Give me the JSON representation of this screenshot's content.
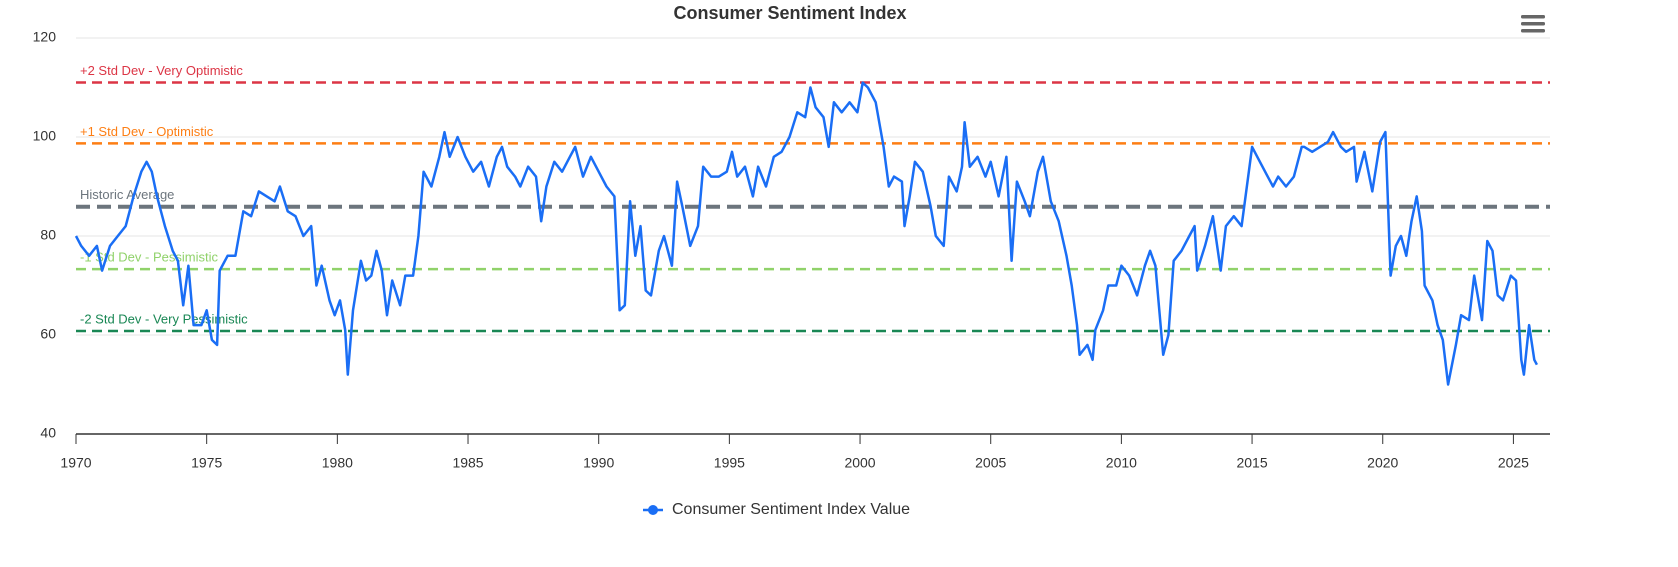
{
  "chart_data": {
    "type": "line",
    "title": "Consumer Sentiment Index",
    "x": [
      1970.0,
      1970.2,
      1970.5,
      1970.8,
      1971.0,
      1971.3,
      1971.6,
      1971.9,
      1972.2,
      1972.5,
      1972.7,
      1972.9,
      1973.1,
      1973.4,
      1973.7,
      1973.9,
      1974.1,
      1974.3,
      1974.5,
      1974.8,
      1975.0,
      1975.2,
      1975.4,
      1975.5,
      1975.8,
      1976.1,
      1976.4,
      1976.7,
      1977.0,
      1977.3,
      1977.6,
      1977.8,
      1978.1,
      1978.4,
      1978.7,
      1979.0,
      1979.2,
      1979.4,
      1979.7,
      1979.9,
      1980.1,
      1980.3,
      1980.4,
      1980.6,
      1980.9,
      1981.1,
      1981.3,
      1981.5,
      1981.7,
      1981.9,
      1982.1,
      1982.4,
      1982.6,
      1982.9,
      1983.1,
      1983.3,
      1983.6,
      1983.9,
      1984.1,
      1984.3,
      1984.6,
      1984.9,
      1985.2,
      1985.5,
      1985.8,
      1986.1,
      1986.3,
      1986.5,
      1986.8,
      1987.0,
      1987.3,
      1987.6,
      1987.8,
      1988.0,
      1988.3,
      1988.6,
      1988.9,
      1989.1,
      1989.4,
      1989.7,
      1990.0,
      1990.3,
      1990.6,
      1990.8,
      1991.0,
      1991.2,
      1991.4,
      1991.6,
      1991.8,
      1992.0,
      1992.3,
      1992.5,
      1992.8,
      1993.0,
      1993.2,
      1993.5,
      1993.8,
      1994.0,
      1994.3,
      1994.6,
      1994.9,
      1995.1,
      1995.3,
      1995.6,
      1995.9,
      1996.1,
      1996.4,
      1996.7,
      1997.0,
      1997.3,
      1997.6,
      1997.9,
      1998.1,
      1998.3,
      1998.6,
      1998.8,
      1999.0,
      1999.3,
      1999.6,
      1999.9,
      2000.1,
      2000.3,
      2000.6,
      2000.9,
      2001.1,
      2001.3,
      2001.6,
      2001.7,
      2001.9,
      2002.1,
      2002.4,
      2002.7,
      2002.9,
      2003.2,
      2003.4,
      2003.7,
      2003.9,
      2004.0,
      2004.2,
      2004.5,
      2004.8,
      2005.0,
      2005.3,
      2005.6,
      2005.8,
      2006.0,
      2006.3,
      2006.5,
      2006.8,
      2007.0,
      2007.3,
      2007.6,
      2007.9,
      2008.1,
      2008.3,
      2008.4,
      2008.7,
      2008.9,
      2009.0,
      2009.3,
      2009.5,
      2009.8,
      2010.0,
      2010.3,
      2010.6,
      2010.9,
      2011.1,
      2011.3,
      2011.6,
      2011.8,
      2012.0,
      2012.3,
      2012.6,
      2012.8,
      2012.9,
      2013.2,
      2013.5,
      2013.8,
      2014.0,
      2014.3,
      2014.6,
      2014.9,
      2015.0,
      2015.3,
      2015.6,
      2015.8,
      2016.0,
      2016.3,
      2016.6,
      2016.9,
      2017.0,
      2017.3,
      2017.6,
      2017.9,
      2018.1,
      2018.4,
      2018.6,
      2018.9,
      2019.0,
      2019.3,
      2019.6,
      2019.9,
      2020.1,
      2020.3,
      2020.5,
      2020.7,
      2020.9,
      2021.1,
      2021.3,
      2021.5,
      2021.6,
      2021.9,
      2022.1,
      2022.3,
      2022.5,
      2022.8,
      2023.0,
      2023.3,
      2023.5,
      2023.8,
      2024.0,
      2024.2,
      2024.4,
      2024.6,
      2024.9,
      2025.1,
      2025.3,
      2025.4,
      2025.6,
      2025.8,
      2025.9
    ],
    "series": [
      {
        "name": "Consumer Sentiment Index Value",
        "color": "#1a6ef5",
        "values": [
          80,
          78,
          76,
          78,
          73,
          78,
          80,
          82,
          88,
          93,
          95,
          93,
          88,
          82,
          77,
          75,
          66,
          74,
          62,
          62,
          65,
          59,
          58,
          73,
          76,
          76,
          85,
          84,
          89,
          88,
          87,
          90,
          85,
          84,
          80,
          82,
          70,
          74,
          67,
          64,
          67,
          61,
          52,
          65,
          75,
          71,
          72,
          77,
          73,
          64,
          71,
          66,
          72,
          72,
          80,
          93,
          90,
          96,
          101,
          96,
          100,
          96,
          93,
          95,
          90,
          96,
          98,
          94,
          92,
          90,
          94,
          92,
          83,
          90,
          95,
          93,
          96,
          98,
          92,
          96,
          93,
          90,
          88,
          65,
          66,
          87,
          76,
          82,
          69,
          68,
          77,
          80,
          74,
          91,
          86,
          78,
          82,
          94,
          92,
          92,
          93,
          97,
          92,
          94,
          88,
          94,
          90,
          96,
          97,
          100,
          105,
          104,
          110,
          106,
          104,
          98,
          107,
          105,
          107,
          105,
          111,
          110,
          107,
          98,
          90,
          92,
          91,
          82,
          88,
          95,
          93,
          86,
          80,
          78,
          92,
          89,
          94,
          103,
          94,
          96,
          92,
          95,
          88,
          96,
          75,
          91,
          87,
          84,
          93,
          96,
          87,
          83,
          76,
          70,
          62,
          56,
          58,
          55,
          61,
          65,
          70,
          70,
          74,
          72,
          68,
          74,
          77,
          74,
          56,
          60,
          75,
          77,
          80,
          82,
          73,
          78,
          84,
          73,
          82,
          84,
          82,
          94,
          98,
          95,
          92,
          90,
          92,
          90,
          92,
          98,
          98,
          97,
          98,
          99,
          101,
          98,
          97,
          98,
          91,
          97,
          89,
          99,
          101,
          72,
          78,
          80,
          76,
          83,
          88,
          81,
          70,
          67,
          62,
          59,
          50,
          58,
          64,
          63,
          72,
          63,
          79,
          77,
          68,
          67,
          72,
          71,
          55,
          52,
          62,
          55,
          54
        ]
      }
    ],
    "xlim": [
      1970,
      2026.4
    ],
    "xticks": [
      1970,
      1975,
      1980,
      1985,
      1990,
      1995,
      2000,
      2005,
      2010,
      2015,
      2020,
      2025
    ],
    "ylim": [
      40,
      120
    ],
    "yticks": [
      40,
      60,
      80,
      100,
      120
    ],
    "grid": true,
    "plot_lines": [
      {
        "label": "+2 Std Dev - Very Optimistic",
        "value": 111,
        "color": "#dc3545"
      },
      {
        "label": "+1 Std Dev - Optimistic",
        "value": 98.7,
        "color": "#fd7e14"
      },
      {
        "label": "Historic Average",
        "value": 85.9,
        "color": "#6c757d"
      },
      {
        "label": "-1 Std Dev - Pessimistic",
        "value": 73.3,
        "color": "#90d26a"
      },
      {
        "label": "-2 Std Dev - Very Pessimistic",
        "value": 60.8,
        "color": "#198754"
      }
    ],
    "legend": "bottom"
  }
}
